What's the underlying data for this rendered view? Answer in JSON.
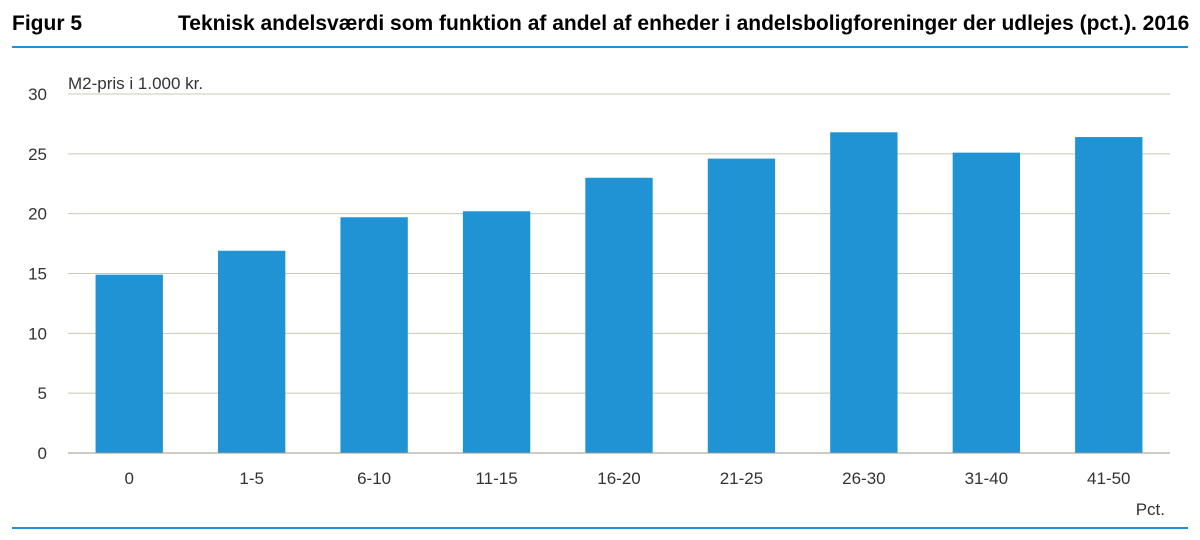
{
  "figure": {
    "label": "Figur 5",
    "title": "Teknisk andelsværdi som funktion af andel af enheder i andelsboligforeninger der udlejes (pct.). 2016"
  },
  "colors": {
    "bar": "#1f93d3",
    "rule": "#1f93d3",
    "grid": "#c8c8b4"
  },
  "chart_data": {
    "type": "bar",
    "categories": [
      "0",
      "1-5",
      "6-10",
      "11-15",
      "16-20",
      "21-25",
      "26-30",
      "31-40",
      "41-50"
    ],
    "values": [
      14.9,
      16.9,
      19.7,
      20.2,
      23.0,
      24.6,
      26.8,
      25.1,
      26.4
    ],
    "ylabel": "M2-pris i 1.000 kr.",
    "xlabel": "Pct.",
    "ylim": [
      0,
      30
    ],
    "yticks": [
      0,
      5,
      10,
      15,
      20,
      25,
      30
    ],
    "grid": true,
    "legend": "none"
  }
}
